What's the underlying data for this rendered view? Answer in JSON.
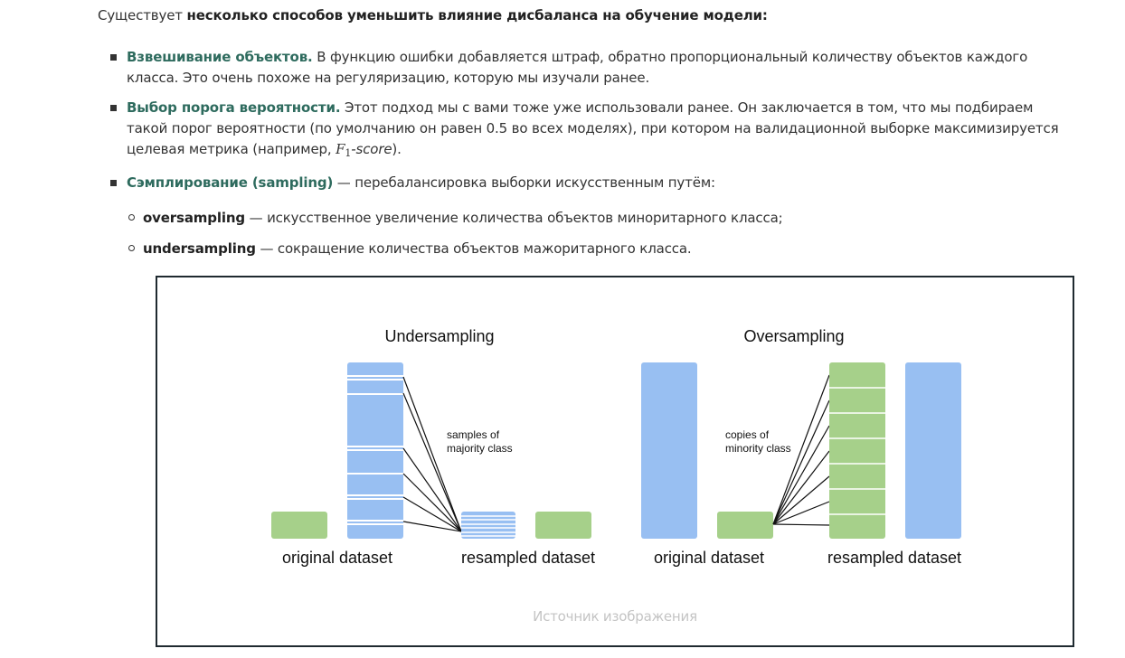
{
  "intro": {
    "prefix": "Существует ",
    "bold": "несколько способов уменьшить влияние дисбаланса на обучение модели:"
  },
  "methods": [
    {
      "term": "Взвешивание объектов.",
      "text": " В функцию ошибки добавляется штраф, обратно пропорциональный количеству объектов каждого класса. Это очень похоже на регуляризацию, которую мы изучали ранее."
    },
    {
      "term": "Выбор порога вероятности.",
      "text": " Этот подход мы с вами тоже уже использовали ранее. Он заключается в том, что мы подбираем такой порог вероятности (по умолчанию он равен 0.5 во всех моделях), при котором на валидационной выборке максимизируется целевая метрика (например, ",
      "math_var": "F",
      "math_sub": "1",
      "math_suffix": "-score",
      "tail": ")."
    },
    {
      "term": "Сэмплирование (sampling)",
      "text": " — перебалансировка выборки искусственным путём:"
    }
  ],
  "sampling_types": [
    {
      "name": "oversampling",
      "text": " — искусственное увеличение количества объектов миноритарного класса;"
    },
    {
      "name": "undersampling",
      "text": " — сокращение количества объектов мажоритарного класса."
    }
  ],
  "figure": {
    "undersampling": {
      "title": "Undersampling",
      "note_line1": "samples of",
      "note_line2": "majority class",
      "label_original": "original dataset",
      "label_resampled": "resampled dataset"
    },
    "oversampling": {
      "title": "Oversampling",
      "note_line1": "copies of",
      "note_line2": "minority class",
      "label_original": "original dataset",
      "label_resampled": "resampled dataset"
    },
    "caption": "Источник изображения",
    "colors": {
      "majority": "#98bff2",
      "minority": "#a6d08a",
      "lines": "#111111",
      "frame": "#1f2a30"
    }
  }
}
